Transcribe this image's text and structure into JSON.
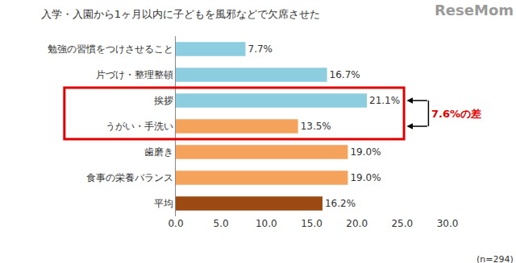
{
  "chart_data": {
    "type": "bar",
    "orientation": "horizontal",
    "title": "入学・入園から1ヶ月以内に子どもを風邪などで欠席させた",
    "categories": [
      "勉強の習慣をつけさせること",
      "片づけ・整理整頓",
      "挨拶",
      "うがい・手洗い",
      "歯磨き",
      "食事の栄養バランス",
      "平均"
    ],
    "values": [
      7.7,
      16.7,
      21.1,
      13.5,
      19.0,
      19.0,
      16.2
    ],
    "value_labels": [
      "7.7%",
      "16.7%",
      "21.1%",
      "13.5%",
      "19.0%",
      "19.0%",
      "16.2%"
    ],
    "colors": [
      "#8dcde0",
      "#8dcde0",
      "#8dcde0",
      "#f5a25d",
      "#f5a25d",
      "#f5a25d",
      "#9c4a14"
    ],
    "xlim": [
      0,
      30
    ],
    "xticks": [
      {
        "value": 0,
        "label": "0.0"
      },
      {
        "value": 5,
        "label": "5.0"
      },
      {
        "value": 10,
        "label": "10.0"
      },
      {
        "value": 15,
        "label": "15.0"
      },
      {
        "value": 20,
        "label": "20.0"
      },
      {
        "value": 25,
        "label": "25.0"
      },
      {
        "value": 30,
        "label": "30.0"
      }
    ],
    "grid": false,
    "data_labels": true,
    "annotations": [
      {
        "text": "7.6%の差",
        "between": [
          "挨拶",
          "うがい・手洗い"
        ]
      },
      {
        "text": "(n=294)"
      },
      {
        "text": "ReseMom"
      }
    ]
  }
}
